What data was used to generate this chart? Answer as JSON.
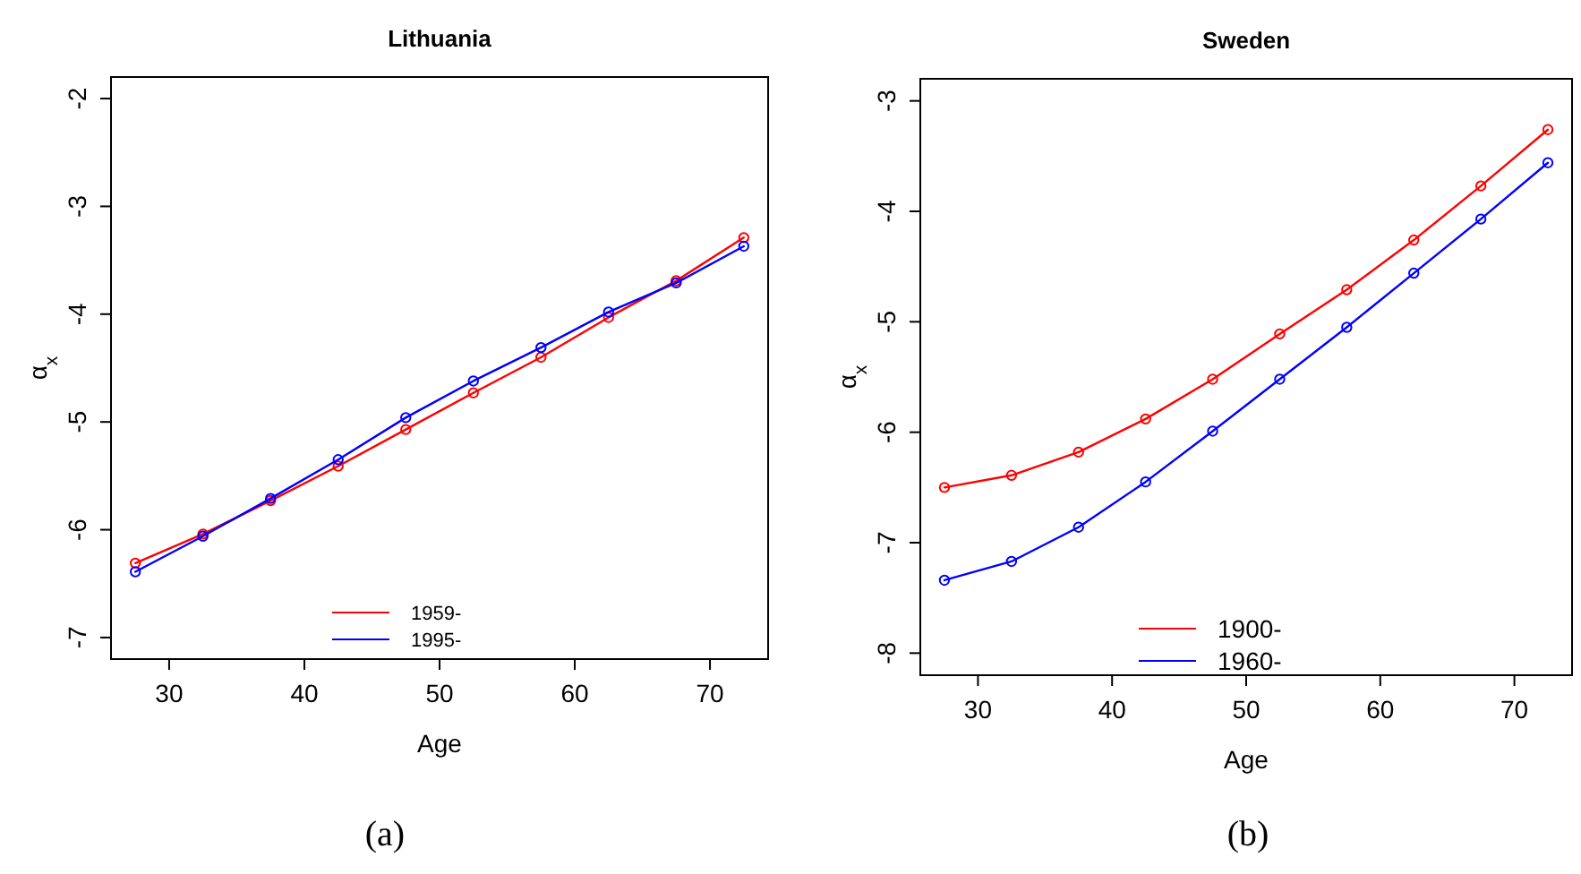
{
  "chart_data": [
    {
      "type": "line",
      "title": "Lithuania",
      "xlabel": "Age",
      "ylabel": "α$_{x}$",
      "x": [
        27.5,
        32.5,
        37.5,
        42.5,
        47.5,
        52.5,
        57.5,
        62.5,
        67.5,
        72.5
      ],
      "xlim": [
        25.7,
        74.3
      ],
      "xticks": [
        30,
        40,
        50,
        60,
        70
      ],
      "ylim": [
        -7.2,
        -1.8
      ],
      "yticks": [
        -7,
        -6,
        -5,
        -4,
        -3,
        -2
      ],
      "marker": "circle",
      "line_style": "solid",
      "grid": false,
      "legend": "bottom",
      "annotations": [
        "(a)"
      ],
      "series": [
        {
          "name": "1959-",
          "color": "#ff0000",
          "values": [
            -6.31,
            -6.04,
            -5.73,
            -5.41,
            -5.07,
            -4.73,
            -4.4,
            -4.03,
            -3.69,
            -3.29
          ]
        },
        {
          "name": "1995-",
          "color": "#0000ff",
          "values": [
            -6.39,
            -6.06,
            -5.71,
            -5.35,
            -4.96,
            -4.62,
            -4.31,
            -3.98,
            -3.71,
            -3.37
          ]
        }
      ]
    },
    {
      "type": "line",
      "title": "Sweden",
      "xlabel": "Age",
      "ylabel": "α$_{x}$",
      "x": [
        27.5,
        32.5,
        37.5,
        42.5,
        47.5,
        52.5,
        57.5,
        62.5,
        67.5,
        72.5
      ],
      "xlim": [
        25.7,
        74.3
      ],
      "xticks": [
        30,
        40,
        50,
        60,
        70
      ],
      "ylim": [
        -8.2,
        -2.8
      ],
      "yticks": [
        -8,
        -7,
        -6,
        -5,
        -4,
        -3
      ],
      "marker": "circle",
      "line_style": "solid",
      "grid": false,
      "legend": "bottom",
      "annotations": [
        "(b)"
      ],
      "series": [
        {
          "name": "1900-",
          "color": "#ff0000",
          "values": [
            -6.5,
            -6.39,
            -6.18,
            -5.88,
            -5.52,
            -5.11,
            -4.71,
            -4.26,
            -3.77,
            -3.26
          ]
        },
        {
          "name": "1960-",
          "color": "#0000ff",
          "values": [
            -7.34,
            -7.17,
            -6.86,
            -6.45,
            -5.99,
            -5.52,
            -5.05,
            -4.56,
            -4.07,
            -3.56
          ]
        }
      ]
    }
  ]
}
